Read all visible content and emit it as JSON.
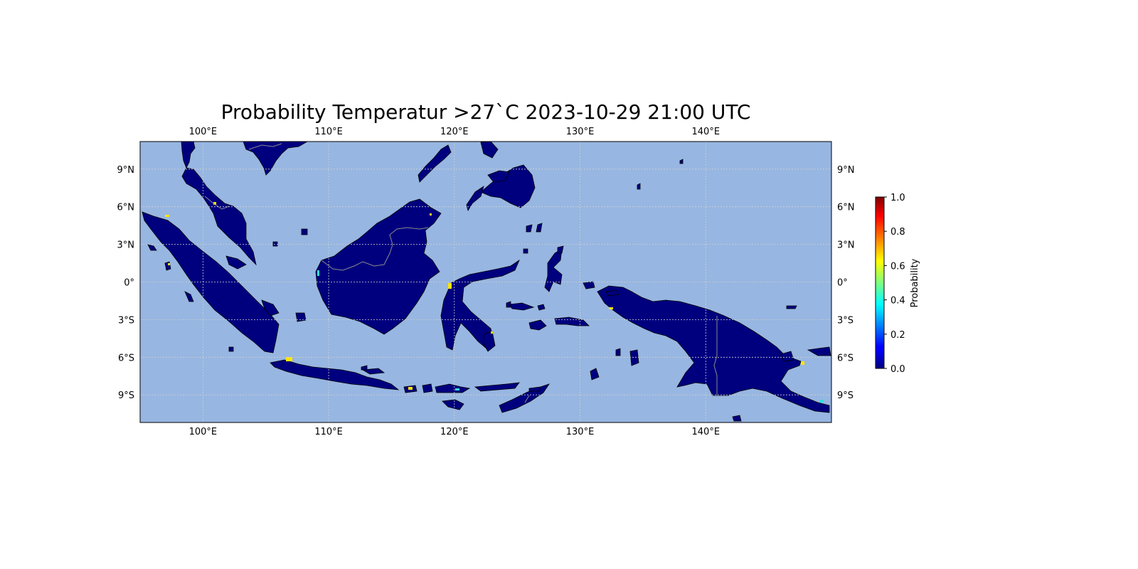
{
  "title": "Probability Temperatur >27`C 2023-10-29 21:00 UTC",
  "map": {
    "extent": {
      "lon": [
        95,
        150
      ],
      "lat": [
        -11.2,
        11.2
      ]
    },
    "colors": {
      "ocean": "#97b6e1",
      "land": "#00007f",
      "coast": "#000000",
      "border": "#8a8a8a",
      "grid": "#d0d0d0",
      "fringe_yellow": "#ffe600",
      "fringe_cyan": "#33dfe0"
    },
    "lon_ticks": [
      {
        "value": 100,
        "label": "100°E"
      },
      {
        "value": 110,
        "label": "110°E"
      },
      {
        "value": 120,
        "label": "120°E"
      },
      {
        "value": 130,
        "label": "130°E"
      },
      {
        "value": 140,
        "label": "140°E"
      }
    ],
    "lat_ticks": [
      {
        "value": 9,
        "label": "9°N"
      },
      {
        "value": 6,
        "label": "6°N"
      },
      {
        "value": 3,
        "label": "3°N"
      },
      {
        "value": 0,
        "label": "0°"
      },
      {
        "value": -3,
        "label": "3°S"
      },
      {
        "value": -6,
        "label": "6°S"
      },
      {
        "value": -9,
        "label": "9°S"
      }
    ]
  },
  "colorbar": {
    "label": "Probability",
    "cmap": "jet",
    "range": [
      0,
      1
    ],
    "ticks": [
      "0.0",
      "0.2",
      "0.4",
      "0.6",
      "0.8",
      "1.0"
    ]
  }
}
